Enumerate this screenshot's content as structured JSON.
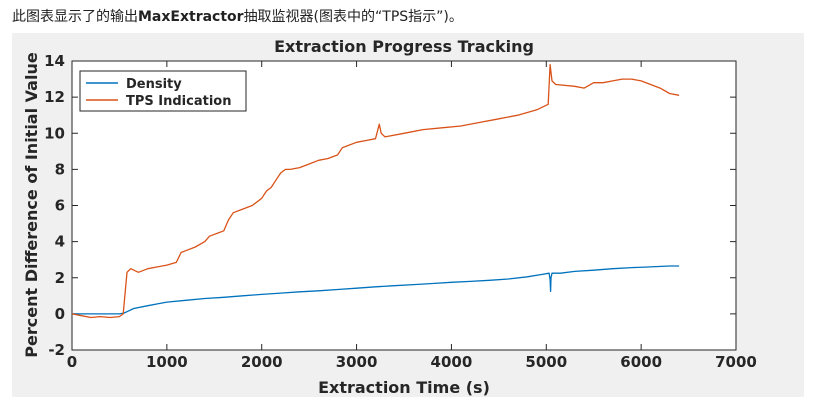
{
  "caption": {
    "prefix": "此图表显示了的输出",
    "app_name": "MaxExtractor",
    "suffix": "抽取监视器(图表中的“TPS指示”)。"
  },
  "chart_data": {
    "type": "line",
    "title": "Extraction Progress Tracking",
    "xlabel": "Extraction Time (s)",
    "ylabel": "Percent Difference of Initial Value",
    "xlim": [
      0,
      7000
    ],
    "ylim": [
      -2,
      14
    ],
    "xticks": [
      0,
      1000,
      2000,
      3000,
      4000,
      5000,
      6000,
      7000
    ],
    "yticks": [
      -2,
      0,
      2,
      4,
      6,
      8,
      10,
      12,
      14
    ],
    "grid": false,
    "legend_position": "top-left",
    "series": [
      {
        "name": "Density",
        "color": "#0072bd",
        "points": [
          [
            0,
            0
          ],
          [
            100,
            0
          ],
          [
            200,
            0
          ],
          [
            300,
            0
          ],
          [
            400,
            0
          ],
          [
            500,
            0
          ],
          [
            550,
            0.05
          ],
          [
            650,
            0.3
          ],
          [
            800,
            0.45
          ],
          [
            900,
            0.55
          ],
          [
            1000,
            0.65
          ],
          [
            1200,
            0.75
          ],
          [
            1400,
            0.85
          ],
          [
            1600,
            0.92
          ],
          [
            1800,
            1.0
          ],
          [
            2000,
            1.08
          ],
          [
            2200,
            1.15
          ],
          [
            2400,
            1.22
          ],
          [
            2600,
            1.28
          ],
          [
            2800,
            1.35
          ],
          [
            3000,
            1.42
          ],
          [
            3200,
            1.5
          ],
          [
            3400,
            1.56
          ],
          [
            3600,
            1.62
          ],
          [
            3800,
            1.68
          ],
          [
            4000,
            1.75
          ],
          [
            4200,
            1.8
          ],
          [
            4400,
            1.86
          ],
          [
            4600,
            1.93
          ],
          [
            4800,
            2.05
          ],
          [
            4950,
            2.18
          ],
          [
            5030,
            2.25
          ],
          [
            5040,
            1.9
          ],
          [
            5045,
            1.25
          ],
          [
            5050,
            2.0
          ],
          [
            5060,
            2.25
          ],
          [
            5150,
            2.25
          ],
          [
            5300,
            2.35
          ],
          [
            5500,
            2.42
          ],
          [
            5700,
            2.5
          ],
          [
            5900,
            2.56
          ],
          [
            6100,
            2.6
          ],
          [
            6300,
            2.65
          ],
          [
            6400,
            2.65
          ]
        ]
      },
      {
        "name": "TPS Indication",
        "color": "#d95319",
        "points": [
          [
            0,
            0
          ],
          [
            100,
            -0.1
          ],
          [
            200,
            -0.2
          ],
          [
            300,
            -0.15
          ],
          [
            400,
            -0.2
          ],
          [
            500,
            -0.15
          ],
          [
            540,
            0
          ],
          [
            580,
            2.3
          ],
          [
            620,
            2.5
          ],
          [
            700,
            2.3
          ],
          [
            800,
            2.5
          ],
          [
            900,
            2.6
          ],
          [
            1000,
            2.7
          ],
          [
            1100,
            2.85
          ],
          [
            1150,
            3.4
          ],
          [
            1200,
            3.5
          ],
          [
            1300,
            3.7
          ],
          [
            1400,
            4.0
          ],
          [
            1450,
            4.3
          ],
          [
            1550,
            4.5
          ],
          [
            1600,
            4.6
          ],
          [
            1650,
            5.2
          ],
          [
            1700,
            5.6
          ],
          [
            1800,
            5.8
          ],
          [
            1900,
            6.0
          ],
          [
            2000,
            6.4
          ],
          [
            2050,
            6.8
          ],
          [
            2100,
            7.0
          ],
          [
            2150,
            7.4
          ],
          [
            2200,
            7.8
          ],
          [
            2250,
            8.0
          ],
          [
            2300,
            8.0
          ],
          [
            2400,
            8.1
          ],
          [
            2500,
            8.3
          ],
          [
            2600,
            8.5
          ],
          [
            2700,
            8.6
          ],
          [
            2800,
            8.8
          ],
          [
            2850,
            9.2
          ],
          [
            2900,
            9.3
          ],
          [
            3000,
            9.5
          ],
          [
            3100,
            9.6
          ],
          [
            3200,
            9.7
          ],
          [
            3240,
            10.5
          ],
          [
            3260,
            10.0
          ],
          [
            3300,
            9.8
          ],
          [
            3500,
            10.0
          ],
          [
            3700,
            10.2
          ],
          [
            3900,
            10.3
          ],
          [
            4100,
            10.4
          ],
          [
            4300,
            10.6
          ],
          [
            4500,
            10.8
          ],
          [
            4700,
            11.0
          ],
          [
            4900,
            11.3
          ],
          [
            5020,
            11.6
          ],
          [
            5040,
            13.8
          ],
          [
            5060,
            12.9
          ],
          [
            5100,
            12.7
          ],
          [
            5300,
            12.6
          ],
          [
            5400,
            12.5
          ],
          [
            5500,
            12.8
          ],
          [
            5600,
            12.8
          ],
          [
            5700,
            12.9
          ],
          [
            5800,
            13.0
          ],
          [
            5900,
            13.0
          ],
          [
            6000,
            12.9
          ],
          [
            6100,
            12.7
          ],
          [
            6200,
            12.5
          ],
          [
            6300,
            12.2
          ],
          [
            6400,
            12.1
          ]
        ]
      }
    ]
  }
}
